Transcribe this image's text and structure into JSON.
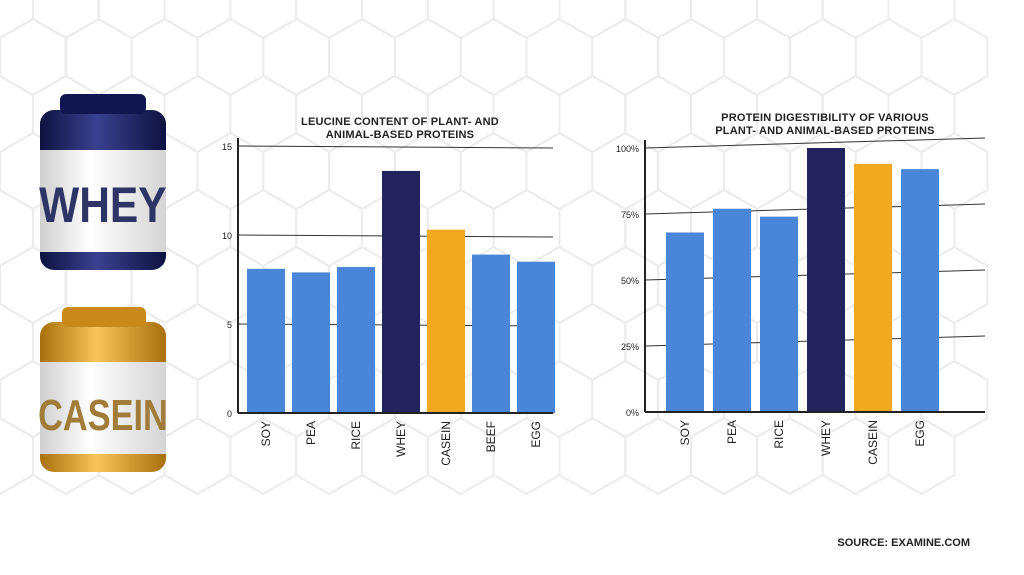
{
  "products": {
    "whey_label": "WHEY",
    "casein_label": "CASEIN",
    "whey_lid_color": "#1a1f5e",
    "casein_lid_color": "#e2a227"
  },
  "source_text": "SOURCE: EXAMINE.COM",
  "colors": {
    "plant": "#4a86d8",
    "whey": "#23235e",
    "casein": "#f2a81f"
  },
  "chart_data": [
    {
      "type": "bar",
      "title_line1": "LEUCINE CONTENT OF PLANT- AND",
      "title_line2": "ANIMAL-BASED PROTEINS",
      "categories": [
        "SOY",
        "PEA",
        "RICE",
        "WHEY",
        "CASEIN",
        "BEEF",
        "EGG"
      ],
      "values": [
        8.1,
        7.9,
        8.2,
        13.6,
        10.3,
        8.9,
        8.5
      ],
      "ylim": [
        0,
        15
      ],
      "yticks": [
        0,
        5,
        10,
        15
      ],
      "ytick_labels": [
        "0",
        "5",
        "10",
        "15"
      ],
      "grid": true
    },
    {
      "type": "bar",
      "title_line1": "PROTEIN DIGESTIBILITY OF VARIOUS",
      "title_line2": "PLANT- AND ANIMAL-BASED PROTEINS",
      "categories": [
        "SOY",
        "PEA",
        "RICE",
        "WHEY",
        "CASEIN",
        "EGG"
      ],
      "values": [
        68,
        77,
        74,
        100,
        94,
        92
      ],
      "ylim": [
        0,
        100
      ],
      "yticks": [
        0,
        25,
        50,
        75,
        100
      ],
      "ytick_labels": [
        "0%",
        "25%",
        "50%",
        "75%",
        "100%"
      ],
      "grid": true
    }
  ]
}
